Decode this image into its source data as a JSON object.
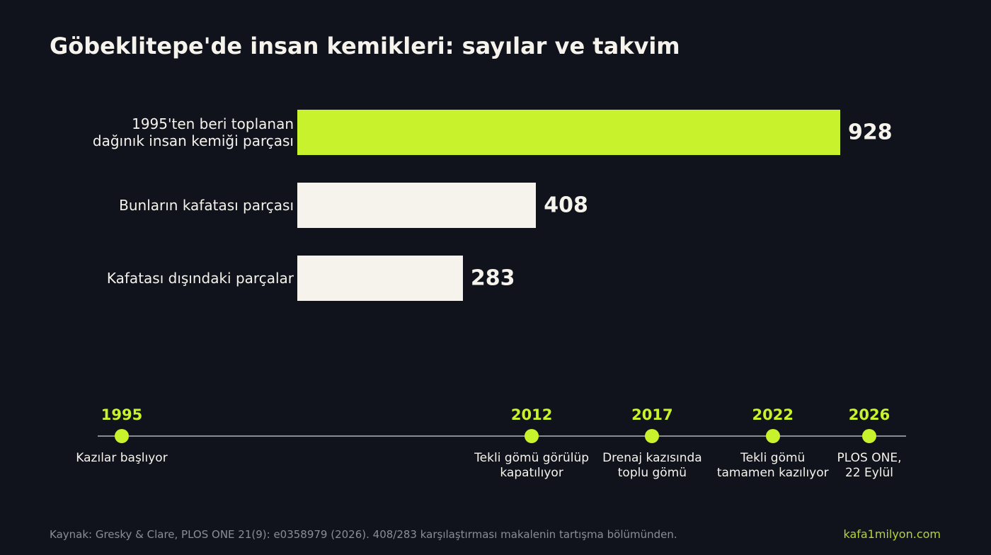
{
  "chart_data": [
    {
      "type": "hbar",
      "title": "Göbeklitepe'de insan kemikleri: sayılar ve takvim",
      "categories": [
        "1995'ten beri toplanan\ndağınık insan kemiği parçası",
        "Bunların kafatası parçası",
        "Kafatası dışındaki parçalar"
      ],
      "values": [
        928,
        408,
        283
      ],
      "colors": [
        "#c8f22c",
        "#f5f3ec",
        "#f5f3ec"
      ]
    },
    {
      "type": "timeline",
      "x": [
        1995,
        2012,
        2017,
        2022,
        2026
      ],
      "labels": [
        "Kazılar başlıyor",
        "Tekli gömü görülüp\nkapatılıyor",
        "Drenaj kazısında\ntoplu gömü",
        "Tekli gömü\ntamamen kazılıyor",
        "PLOS ONE,\n22 Eylül"
      ],
      "color": "#c8f22c"
    }
  ],
  "source": "Kaynak: Gresky & Clare, PLOS ONE 21(9): e0358979 (2026). 408/283 karşılaştırması makalenin tartışma bölümünden.",
  "site": "kafa1milyon.com"
}
